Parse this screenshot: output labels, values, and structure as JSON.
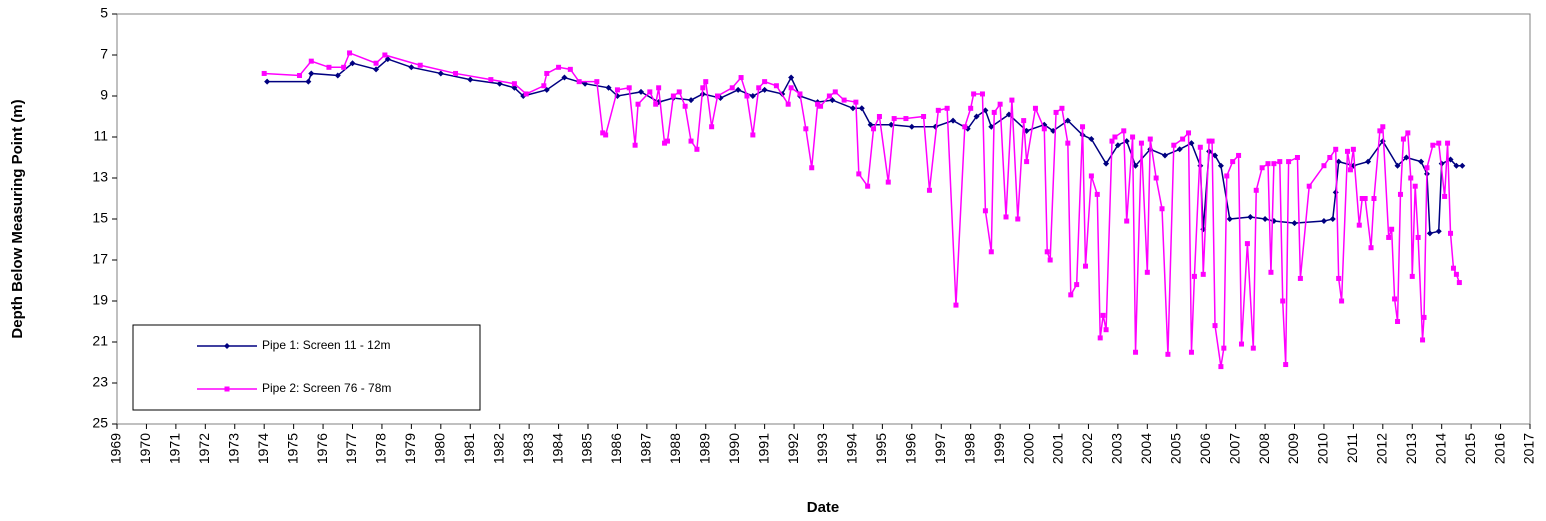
{
  "chart_data": {
    "type": "line",
    "x_label": "Date",
    "y_label": "Depth Below Measuring Point (m)",
    "xlim": [
      1969,
      2017
    ],
    "xticks": [
      1969,
      1970,
      1971,
      1972,
      1973,
      1974,
      1975,
      1976,
      1977,
      1978,
      1979,
      1980,
      1981,
      1982,
      1983,
      1984,
      1985,
      1986,
      1987,
      1988,
      1989,
      1990,
      1991,
      1992,
      1993,
      1994,
      1995,
      1996,
      1997,
      1998,
      1999,
      2000,
      2001,
      2002,
      2003,
      2004,
      2005,
      2006,
      2007,
      2008,
      2009,
      2010,
      2011,
      2012,
      2013,
      2014,
      2015,
      2016,
      2017
    ],
    "ylim": [
      5,
      25
    ],
    "yticks": [
      5,
      7,
      9,
      11,
      13,
      15,
      17,
      19,
      21,
      23,
      25
    ],
    "y_inverted": true,
    "grid": false,
    "legend": "lower left",
    "series": [
      {
        "name": "Pipe 1: Screen 11 - 12m",
        "color": "#000080",
        "marker": "diamond",
        "x": [
          1974.1,
          1975.5,
          1975.6,
          1976.5,
          1977.0,
          1977.8,
          1978.2,
          1979.0,
          1980.0,
          1981.0,
          1982.0,
          1982.5,
          1982.8,
          1983.6,
          1984.2,
          1984.9,
          1985.7,
          1986.0,
          1986.8,
          1987.4,
          1987.9,
          1988.5,
          1988.9,
          1989.5,
          1990.1,
          1990.6,
          1991.0,
          1991.6,
          1991.9,
          1992.2,
          1992.8,
          1993.3,
          1994.0,
          1994.3,
          1994.6,
          1995.3,
          1996.0,
          1996.8,
          1997.4,
          1997.9,
          1998.2,
          1998.5,
          1998.7,
          1999.3,
          1999.9,
          2000.5,
          2000.8,
          2001.3,
          2001.8,
          2002.1,
          2002.6,
          2003.0,
          2003.3,
          2003.6,
          2004.1,
          2004.6,
          2005.1,
          2005.5,
          2005.8,
          2005.9,
          2006.1,
          2006.3,
          2006.5,
          2006.8,
          2007.5,
          2008.0,
          2008.3,
          2009.0,
          2010.0,
          2010.3,
          2010.4,
          2010.5,
          2011.0,
          2011.5,
          2012.0,
          2012.5,
          2012.8,
          2013.3,
          2013.5,
          2013.6,
          2013.9,
          2014.0,
          2014.3,
          2014.5,
          2014.7
        ],
        "values": [
          8.3,
          8.3,
          7.9,
          8.0,
          7.4,
          7.7,
          7.2,
          7.6,
          7.9,
          8.2,
          8.4,
          8.6,
          9.0,
          8.7,
          8.1,
          8.4,
          8.6,
          9.0,
          8.8,
          9.3,
          9.1,
          9.2,
          8.9,
          9.1,
          8.7,
          9.0,
          8.7,
          8.9,
          8.1,
          9.0,
          9.3,
          9.2,
          9.6,
          9.6,
          10.4,
          10.4,
          10.5,
          10.5,
          10.2,
          10.6,
          10.0,
          9.7,
          10.5,
          9.9,
          10.7,
          10.4,
          10.7,
          10.2,
          10.9,
          11.1,
          12.3,
          11.4,
          11.2,
          12.4,
          11.6,
          11.9,
          11.6,
          11.3,
          12.4,
          15.5,
          11.7,
          11.9,
          12.4,
          15.0,
          14.9,
          15.0,
          15.1,
          15.2,
          15.1,
          15.0,
          13.7,
          12.2,
          12.4,
          12.2,
          11.2,
          12.4,
          12.0,
          12.2,
          12.8,
          15.7,
          15.6,
          12.3,
          12.1,
          12.4,
          12.4
        ]
      },
      {
        "name": "Pipe 2: Screen 76 - 78m",
        "color": "#ff00ff",
        "marker": "square",
        "x": [
          1974.0,
          1975.2,
          1975.6,
          1976.2,
          1976.7,
          1976.9,
          1977.8,
          1978.1,
          1979.3,
          1980.5,
          1981.7,
          1982.5,
          1982.9,
          1983.5,
          1983.6,
          1984.0,
          1984.4,
          1984.7,
          1985.3,
          1985.5,
          1985.6,
          1986.0,
          1986.4,
          1986.6,
          1986.7,
          1987.1,
          1987.3,
          1987.4,
          1987.6,
          1987.7,
          1987.9,
          1988.1,
          1988.3,
          1988.5,
          1988.7,
          1988.9,
          1989.0,
          1989.2,
          1989.4,
          1989.9,
          1990.2,
          1990.4,
          1990.6,
          1990.8,
          1991.0,
          1991.4,
          1991.8,
          1991.9,
          1992.2,
          1992.4,
          1992.6,
          1992.8,
          1992.9,
          1993.2,
          1993.4,
          1993.7,
          1994.1,
          1994.2,
          1994.5,
          1994.7,
          1994.9,
          1995.2,
          1995.4,
          1995.8,
          1996.4,
          1996.6,
          1996.9,
          1997.2,
          1997.5,
          1997.8,
          1998.0,
          1998.1,
          1998.4,
          1998.5,
          1998.7,
          1998.8,
          1999.0,
          1999.2,
          1999.4,
          1999.6,
          1999.8,
          1999.9,
          2000.2,
          2000.5,
          2000.6,
          2000.7,
          2000.9,
          2001.1,
          2001.3,
          2001.4,
          2001.6,
          2001.8,
          2001.9,
          2002.1,
          2002.3,
          2002.4,
          2002.5,
          2002.6,
          2002.8,
          2002.9,
          2003.2,
          2003.3,
          2003.5,
          2003.6,
          2003.8,
          2004.0,
          2004.1,
          2004.3,
          2004.5,
          2004.7,
          2004.9,
          2005.2,
          2005.4,
          2005.5,
          2005.6,
          2005.8,
          2005.9,
          2006.1,
          2006.2,
          2006.3,
          2006.5,
          2006.6,
          2006.7,
          2006.9,
          2007.1,
          2007.2,
          2007.4,
          2007.6,
          2007.7,
          2007.9,
          2008.1,
          2008.2,
          2008.3,
          2008.5,
          2008.6,
          2008.7,
          2008.8,
          2009.1,
          2009.2,
          2009.5,
          2010.0,
          2010.2,
          2010.4,
          2010.5,
          2010.6,
          2010.8,
          2010.9,
          2011.0,
          2011.2,
          2011.3,
          2011.4,
          2011.6,
          2011.7,
          2011.9,
          2012.0,
          2012.2,
          2012.3,
          2012.4,
          2012.5,
          2012.6,
          2012.7,
          2012.85,
          2012.95,
          2013.0,
          2013.1,
          2013.2,
          2013.35,
          2013.4,
          2013.5,
          2013.7,
          2013.9,
          2014.1,
          2014.2,
          2014.3,
          2014.4,
          2014.5,
          2014.6
        ],
        "values": [
          7.9,
          8.0,
          7.3,
          7.6,
          7.6,
          6.9,
          7.4,
          7.0,
          7.5,
          7.9,
          8.2,
          8.4,
          8.9,
          8.5,
          7.9,
          7.6,
          7.7,
          8.3,
          8.3,
          10.8,
          10.9,
          8.7,
          8.6,
          11.4,
          9.4,
          8.8,
          9.4,
          8.6,
          11.3,
          11.2,
          9.0,
          8.8,
          9.5,
          11.2,
          11.6,
          8.6,
          8.3,
          10.5,
          9.0,
          8.6,
          8.1,
          9.0,
          10.9,
          8.6,
          8.3,
          8.5,
          9.4,
          8.6,
          8.9,
          10.6,
          12.5,
          9.4,
          9.5,
          9.0,
          8.8,
          9.2,
          9.3,
          12.8,
          13.4,
          10.6,
          10.0,
          13.2,
          10.1,
          10.1,
          10.0,
          13.6,
          9.7,
          9.6,
          19.2,
          10.5,
          9.6,
          8.9,
          8.9,
          14.6,
          16.6,
          9.8,
          9.4,
          14.9,
          9.2,
          15.0,
          10.2,
          12.2,
          9.6,
          10.6,
          16.6,
          17.0,
          9.8,
          9.6,
          11.3,
          18.7,
          18.2,
          10.5,
          17.3,
          12.9,
          13.8,
          20.8,
          19.7,
          20.4,
          11.2,
          11.0,
          10.7,
          15.1,
          11.0,
          21.5,
          11.3,
          17.6,
          11.1,
          13.0,
          14.5,
          21.6,
          11.4,
          11.1,
          10.8,
          21.5,
          17.8,
          11.5,
          17.7,
          11.2,
          11.2,
          20.2,
          22.2,
          21.3,
          12.9,
          12.2,
          11.9,
          21.1,
          16.2,
          21.3,
          13.6,
          12.5,
          12.3,
          17.6,
          12.3,
          12.2,
          19.0,
          22.1,
          12.2,
          12.0,
          17.9,
          13.4,
          12.4,
          12.0,
          11.6,
          17.9,
          19.0,
          11.7,
          12.6,
          11.6,
          15.3,
          14.0,
          14.0,
          16.4,
          14.0,
          10.7,
          10.5,
          15.9,
          15.5,
          18.9,
          20.0,
          13.8,
          11.1,
          10.8,
          13.0,
          17.8,
          13.4,
          15.9,
          20.9,
          19.8,
          12.5,
          11.4,
          11.3,
          13.9,
          11.3,
          15.7,
          17.4,
          17.7,
          18.1
        ]
      }
    ]
  }
}
